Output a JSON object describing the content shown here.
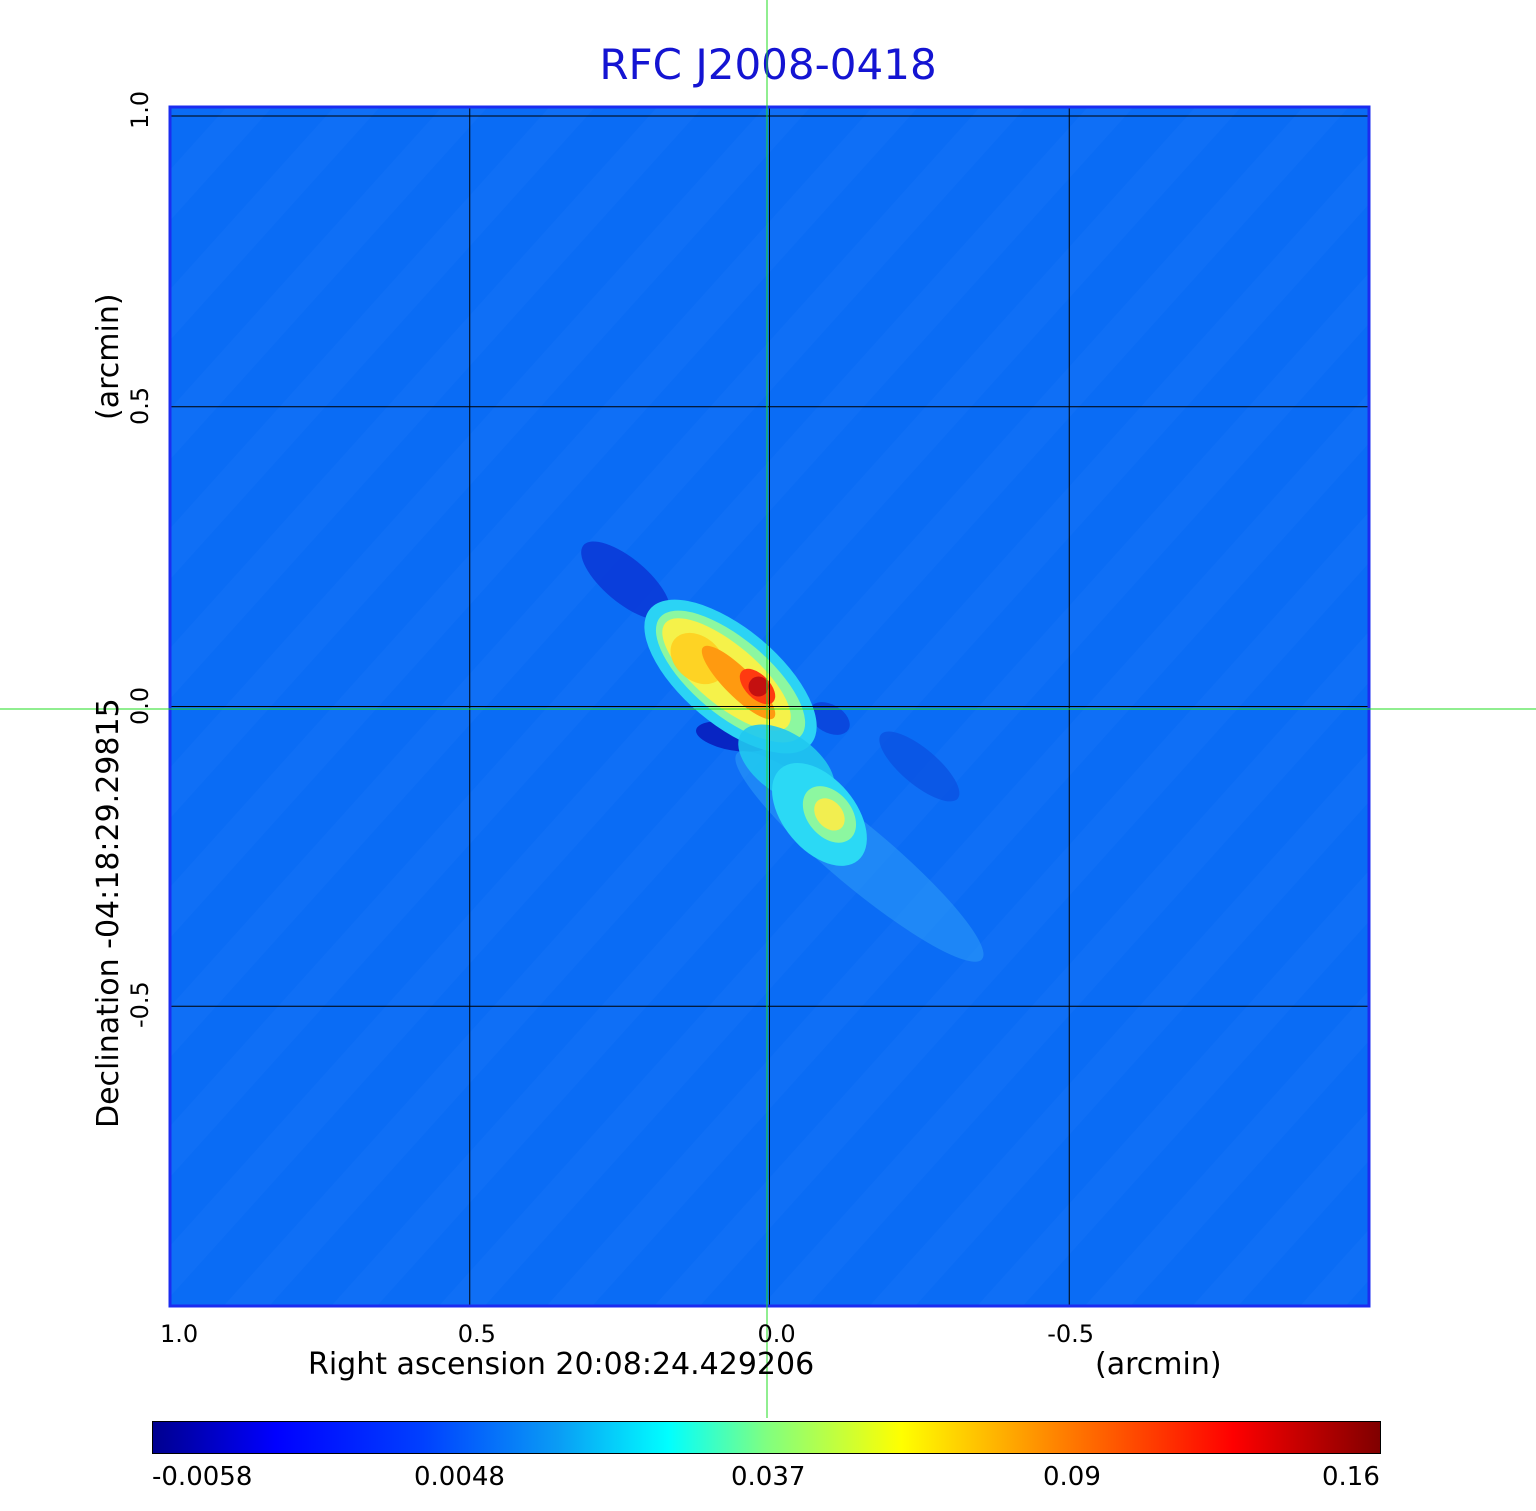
{
  "chart_data": {
    "type": "heatmap",
    "title": "RFC J2008-0418",
    "xlabel": "Right ascension  20:08:24.429206",
    "xunit": "(arcmin)",
    "ylabel": "Declination  -04:18:29.29815",
    "yunit": "(arcmin)",
    "xlim": [
      1.0,
      -1.0
    ],
    "ylim": [
      -1.0,
      1.0
    ],
    "x_ticks": [
      "1.0",
      "0.5",
      "0.0",
      "-0.5"
    ],
    "y_ticks": [
      "-0.5",
      "0.0",
      "0.5",
      "1.0"
    ],
    "grid": true,
    "crosshair": [
      0.0,
      0.0
    ],
    "colormap": "jet",
    "colorbar_ticks": [
      "-0.0058",
      "0.0048",
      "0.037",
      "0.09",
      "0.16"
    ],
    "sources": [
      {
        "x": 0.12,
        "y": 0.08,
        "peak": 0.12
      },
      {
        "x": 0.01,
        "y": 0.02,
        "peak": 0.16
      },
      {
        "x": -0.1,
        "y": -0.18,
        "peak": 0.085
      }
    ]
  },
  "colors": {
    "title": "#1414d2",
    "frame": "#1b2cf0",
    "grid": "#000000",
    "crosshair": "#22dd22",
    "background": "#0a6cf5"
  }
}
